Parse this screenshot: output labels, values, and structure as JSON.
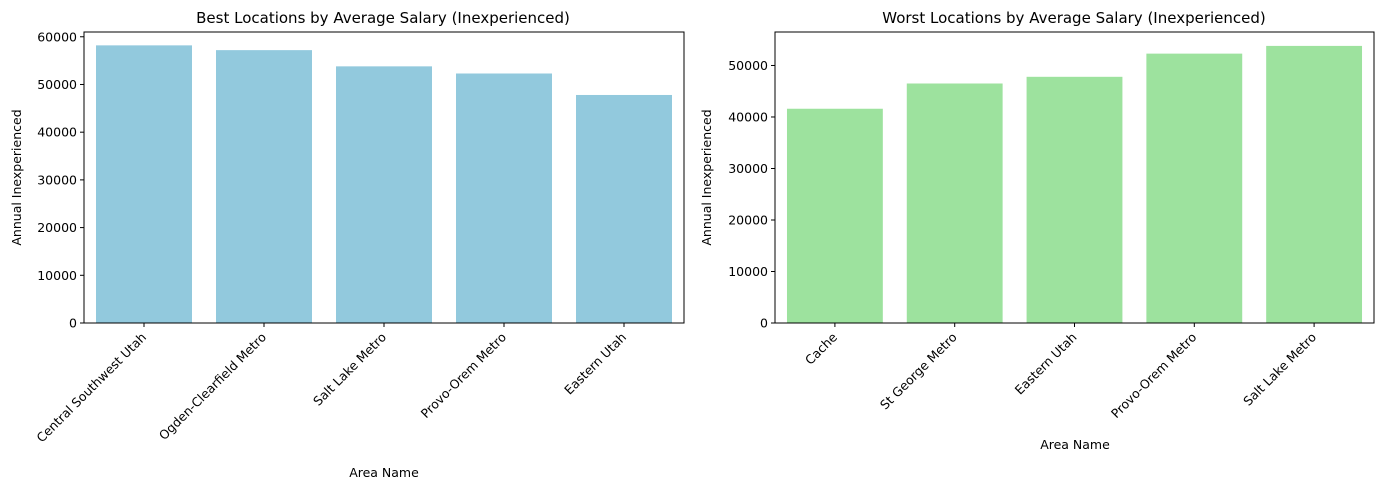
{
  "chart_data": [
    {
      "type": "bar",
      "title": "Best Locations by Average Salary (Inexperienced)",
      "xlabel": "Area Name",
      "ylabel": "Annual Inexperienced",
      "categories": [
        "Central Southwest Utah",
        "Ogden-Clearfield Metro",
        "Salt Lake Metro",
        "Provo-Orem Metro",
        "Eastern Utah"
      ],
      "values": [
        58200,
        57200,
        53800,
        52300,
        47800
      ],
      "ylim": [
        0,
        61000
      ],
      "yticks": [
        0,
        10000,
        20000,
        30000,
        40000,
        50000,
        60000
      ],
      "color": "#92c9dd",
      "grid": false
    },
    {
      "type": "bar",
      "title": "Worst Locations by Average Salary (Inexperienced)",
      "xlabel": "Area Name",
      "ylabel": "Annual Inexperienced",
      "categories": [
        "Cache",
        "St George Metro",
        "Eastern Utah",
        "Provo-Orem Metro",
        "Salt Lake Metro"
      ],
      "values": [
        41600,
        46500,
        47800,
        52300,
        53800
      ],
      "ylim": [
        0,
        56500
      ],
      "yticks": [
        0,
        10000,
        20000,
        30000,
        40000,
        50000
      ],
      "color": "#9de29e",
      "grid": false
    }
  ]
}
